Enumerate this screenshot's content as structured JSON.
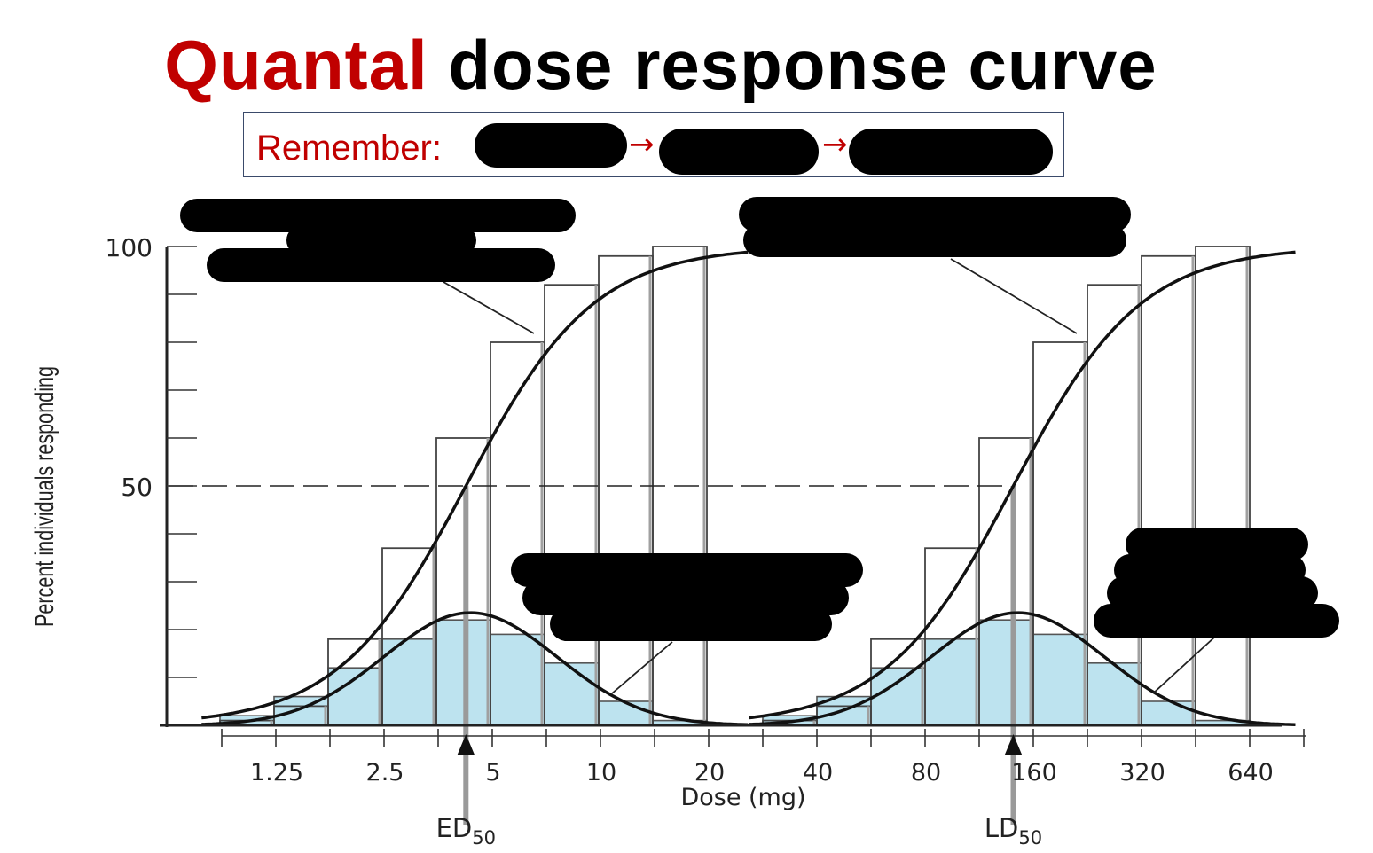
{
  "slide": {
    "title_accent": "Quantal",
    "title_rest": " dose response curve",
    "remember_label": "Remember:",
    "arrow_glyph": "→",
    "accent_color": "#c00000"
  },
  "chart_data": {
    "type": "bar",
    "xlabel": "Dose (mg)",
    "ylabel": "Percent individuals responding",
    "x_scale": "log2",
    "x_ticks": [
      "1.25",
      "2.5",
      "5",
      "10",
      "20",
      "40",
      "80",
      "160",
      "320",
      "640"
    ],
    "ylim": [
      0,
      100
    ],
    "y_ticks": [
      "100",
      "50"
    ],
    "reference_line_y": 50,
    "markers": [
      {
        "label": "ED",
        "subscript": "50",
        "x": 4.2
      },
      {
        "label": "LD",
        "subscript": "50",
        "x": 140
      }
    ],
    "series": [
      {
        "kind": "cumulative",
        "ed50": 4.2,
        "step_heights": [
          1,
          4,
          18,
          37,
          60,
          80,
          92,
          98,
          100
        ]
      },
      {
        "kind": "frequency",
        "bar_heights": [
          2,
          6,
          12,
          18,
          22,
          19,
          13,
          5,
          1
        ]
      },
      {
        "kind": "cumulative",
        "ld50": 140,
        "step_heights": [
          1,
          4,
          18,
          37,
          60,
          80,
          92,
          98,
          100
        ]
      },
      {
        "kind": "frequency",
        "bar_heights": [
          2,
          6,
          12,
          18,
          22,
          19,
          13,
          5,
          1
        ]
      }
    ],
    "colors": {
      "bar_fill": "#bde3ef",
      "line": "#111111",
      "marker_line": "#9a9a9a"
    }
  }
}
